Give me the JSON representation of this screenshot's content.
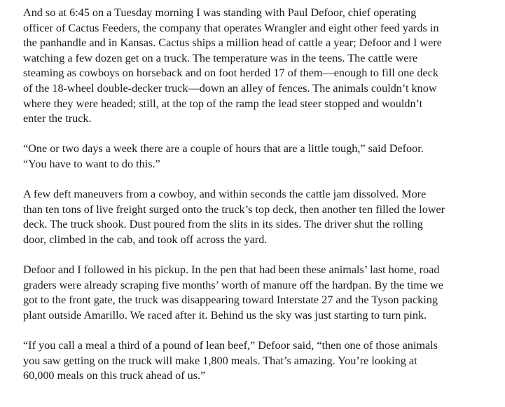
{
  "paragraphs": [
    "And so at 6:45 on a Tuesday morning I was standing with Paul Defoor, chief operating\nofficer of Cactus Feeders, the company that operates Wrangler and eight other feed yards in\nthe panhandle and in Kansas. Cactus ships a million head of cattle a year; Defoor and I were\nwatching a few dozen get on a truck. The temperature was in the teens. The cattle were\nsteaming as cowboys on horseback and on foot herded 17 of them—enough to fill one deck\nof the 18-wheel double-decker truck—down an alley of fences. The animals couldn’t know\nwhere they were headed; still, at the top of the ramp the lead steer stopped and wouldn’t\nenter the truck.",
    "“One or two days a week there are a couple of hours that are a little tough,” said Defoor.\n“You have to want to do this.”",
    "A few deft maneuvers from a cowboy, and within seconds the cattle jam dissolved. More\nthan ten tons of live freight surged onto the truck’s top deck, then another ten filled the lower\ndeck. The truck shook. Dust poured from the slits in its sides. The driver shut the rolling\ndoor, climbed in the cab, and took off across the yard.",
    "Defoor and I followed in his pickup. In the pen that had been these animals’ last home, road\ngraders were already scraping five months’ worth of manure off the hardpan. By the time we\ngot to the front gate, the truck was disappearing toward Interstate 27 and the Tyson packing\nplant outside Amarillo. We raced after it. Behind us the sky was just starting to turn pink.",
    "“If you call a meal a third of a pound of lean beef,” Defoor said, “then one of those animals\nyou saw getting on the truck will make 1,800 meals. That’s amazing. You’re looking at\n60,000 meals on this truck ahead of us.”"
  ]
}
